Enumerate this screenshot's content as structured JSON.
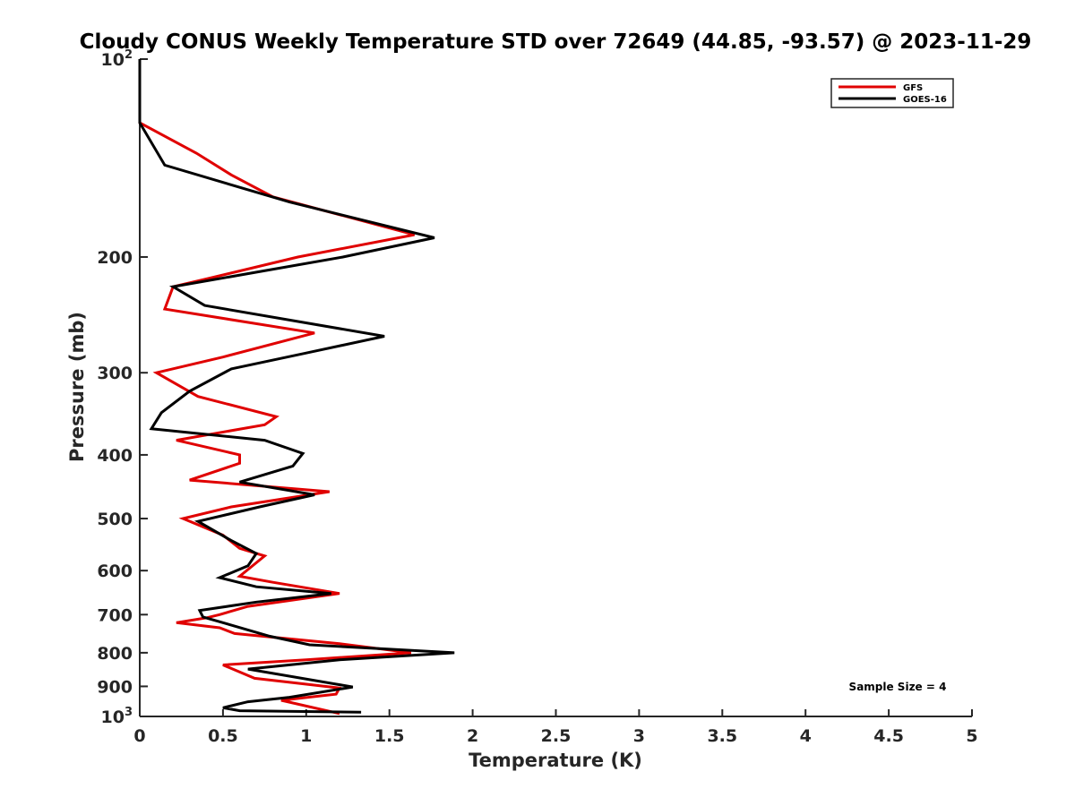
{
  "chart_data": {
    "type": "line",
    "title": "Cloudy CONUS Weekly Temperature STD over 72649 (44.85, -93.57) @ 2023-11-29",
    "xlabel": "Temperature (K)",
    "ylabel": "Pressure (mb)",
    "xlim": [
      0,
      5
    ],
    "ylim": [
      100,
      1000
    ],
    "y_scale": "log",
    "y_reversed": true,
    "x_ticks": [
      "0",
      "0.5",
      "1",
      "1.5",
      "2",
      "2.5",
      "3",
      "3.5",
      "4",
      "4.5",
      "5"
    ],
    "y_ticks": [
      {
        "value": 100,
        "base": "10",
        "exp": "2"
      },
      {
        "value": 200,
        "label": "200"
      },
      {
        "value": 300,
        "label": "300"
      },
      {
        "value": 400,
        "label": "400"
      },
      {
        "value": 500,
        "label": "500"
      },
      {
        "value": 600,
        "label": "600"
      },
      {
        "value": 700,
        "label": "700"
      },
      {
        "value": 800,
        "label": "800"
      },
      {
        "value": 900,
        "label": "900"
      },
      {
        "value": 1000,
        "base": "10",
        "exp": "3"
      }
    ],
    "legend_position": "top-right",
    "grid": false,
    "annotation": "Sample Size = 4",
    "series": [
      {
        "name": "GFS",
        "color": "#e00000",
        "points": [
          [
            0,
            100
          ],
          [
            0,
            125
          ],
          [
            0.34,
            139
          ],
          [
            0.55,
            150
          ],
          [
            0.8,
            162
          ],
          [
            1.65,
            185
          ],
          [
            0.95,
            200
          ],
          [
            0.4,
            216
          ],
          [
            0.2,
            222
          ],
          [
            0.15,
            240
          ],
          [
            1.05,
            261
          ],
          [
            0.5,
            284
          ],
          [
            0.1,
            300
          ],
          [
            0.35,
            326
          ],
          [
            0.82,
            350
          ],
          [
            0.75,
            360
          ],
          [
            0.22,
            380
          ],
          [
            0.6,
            400
          ],
          [
            0.6,
            412
          ],
          [
            0.3,
            437
          ],
          [
            1.14,
            455
          ],
          [
            0.55,
            480
          ],
          [
            0.26,
            500
          ],
          [
            0.5,
            530
          ],
          [
            0.6,
            555
          ],
          [
            0.75,
            570
          ],
          [
            0.6,
            612
          ],
          [
            0.8,
            625
          ],
          [
            1.2,
            650
          ],
          [
            0.65,
            680
          ],
          [
            0.48,
            700
          ],
          [
            0.4,
            708
          ],
          [
            0.22,
            720
          ],
          [
            0.48,
            733
          ],
          [
            0.57,
            748
          ],
          [
            1.2,
            775
          ],
          [
            1.63,
            800
          ],
          [
            1.0,
            820
          ],
          [
            0.5,
            835
          ],
          [
            0.69,
            875
          ],
          [
            1.2,
            905
          ],
          [
            1.18,
            925
          ],
          [
            0.85,
            945
          ],
          [
            1.2,
            990
          ]
        ]
      },
      {
        "name": "GOES-16",
        "color": "#000000",
        "points": [
          [
            0,
            100
          ],
          [
            0,
            125
          ],
          [
            0.15,
            145
          ],
          [
            0.9,
            165
          ],
          [
            1.77,
            187
          ],
          [
            1.22,
            200
          ],
          [
            0.2,
            222
          ],
          [
            0.39,
            237
          ],
          [
            1.47,
            264
          ],
          [
            1.0,
            280
          ],
          [
            0.55,
            296
          ],
          [
            0.3,
            320
          ],
          [
            0.13,
            345
          ],
          [
            0.07,
            365
          ],
          [
            0.75,
            380
          ],
          [
            0.98,
            398
          ],
          [
            0.92,
            416
          ],
          [
            0.6,
            440
          ],
          [
            1.05,
            460
          ],
          [
            0.72,
            480
          ],
          [
            0.35,
            505
          ],
          [
            0.55,
            540
          ],
          [
            0.7,
            565
          ],
          [
            0.65,
            590
          ],
          [
            0.48,
            615
          ],
          [
            0.7,
            635
          ],
          [
            1.15,
            650
          ],
          [
            0.7,
            670
          ],
          [
            0.36,
            690
          ],
          [
            0.38,
            706
          ],
          [
            0.5,
            720
          ],
          [
            0.78,
            755
          ],
          [
            1.02,
            778
          ],
          [
            1.5,
            790
          ],
          [
            1.89,
            800
          ],
          [
            1.2,
            820
          ],
          [
            0.65,
            847
          ],
          [
            1.28,
            902
          ],
          [
            0.9,
            935
          ],
          [
            0.65,
            950
          ],
          [
            0.5,
            970
          ],
          [
            0.6,
            980
          ],
          [
            1.33,
            985
          ]
        ]
      }
    ]
  }
}
